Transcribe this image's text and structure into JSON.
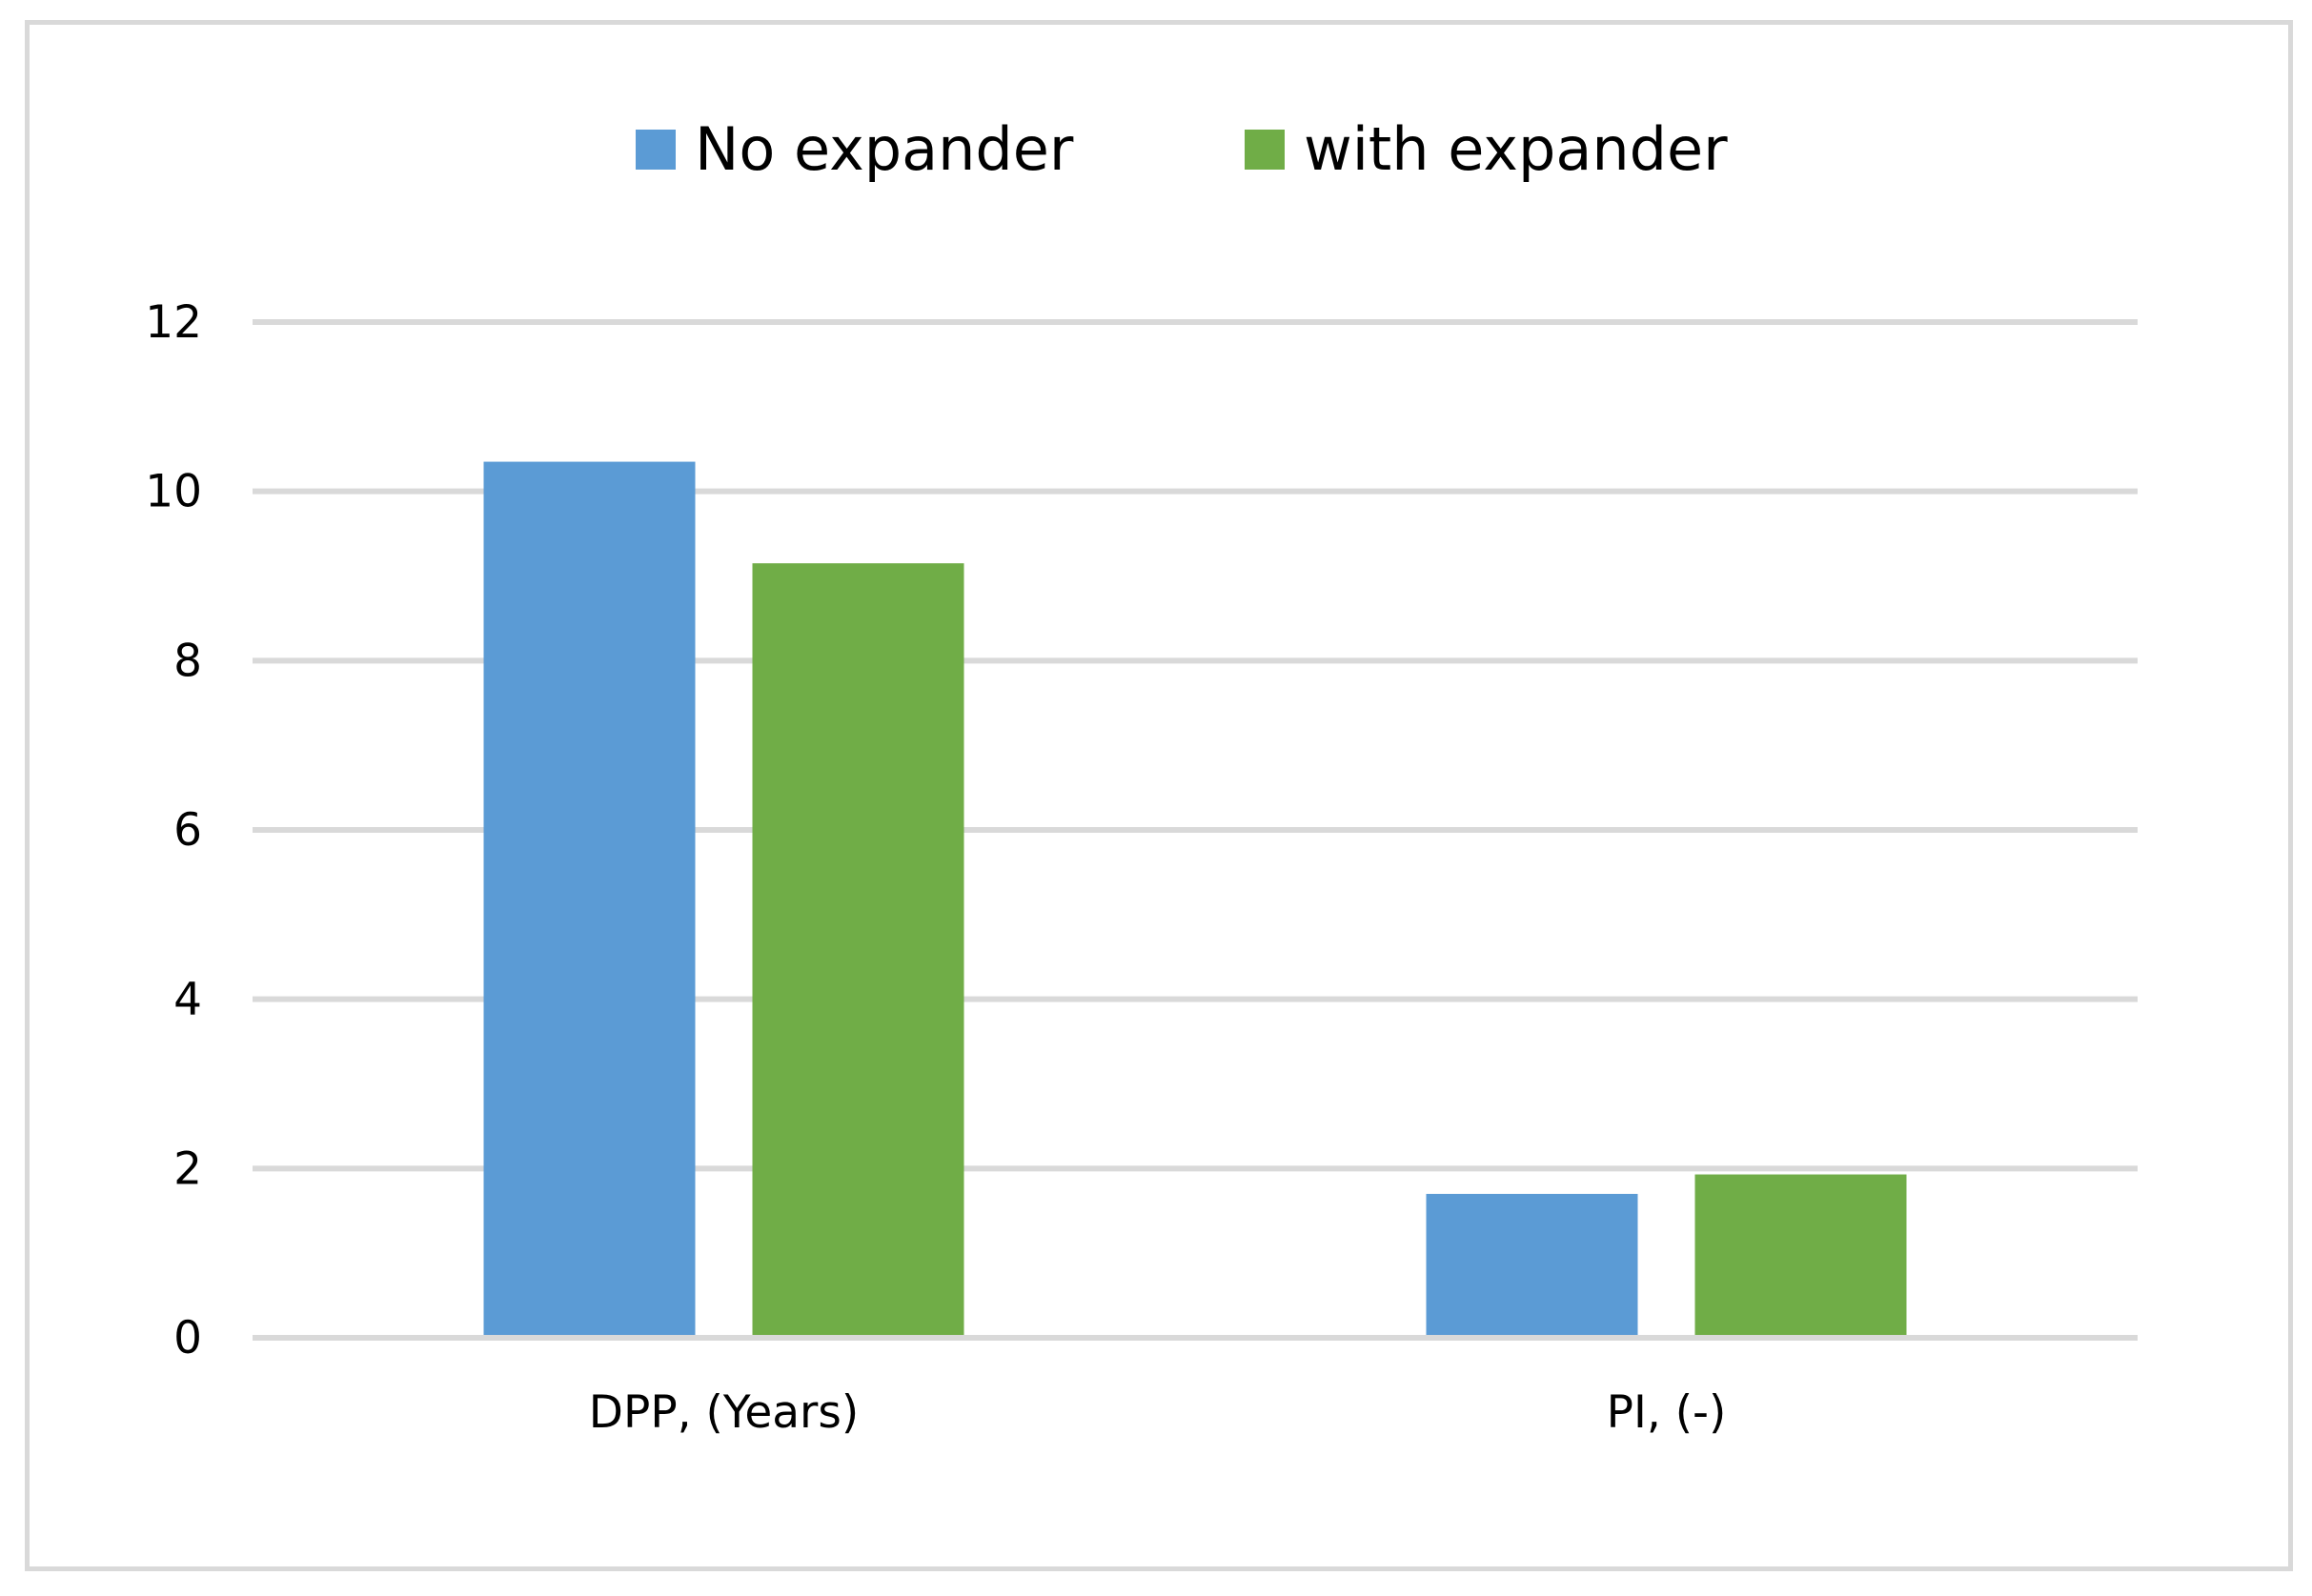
{
  "chart_data": {
    "type": "bar",
    "title": "",
    "xlabel": "",
    "ylabel": "",
    "categories": [
      "DPP, (Years)",
      "PI, (-)"
    ],
    "series": [
      {
        "name": "No expander",
        "values": [
          10.35,
          1.7
        ],
        "color": "#5b9bd5"
      },
      {
        "name": "with expander",
        "values": [
          9.15,
          1.93
        ],
        "color": "#70ad47"
      }
    ],
    "ylim": [
      0,
      12
    ],
    "yticks": [
      0,
      2,
      4,
      6,
      8,
      10,
      12
    ],
    "grid": true,
    "gridColor": "#d9d9d9",
    "legend": "top-center"
  }
}
